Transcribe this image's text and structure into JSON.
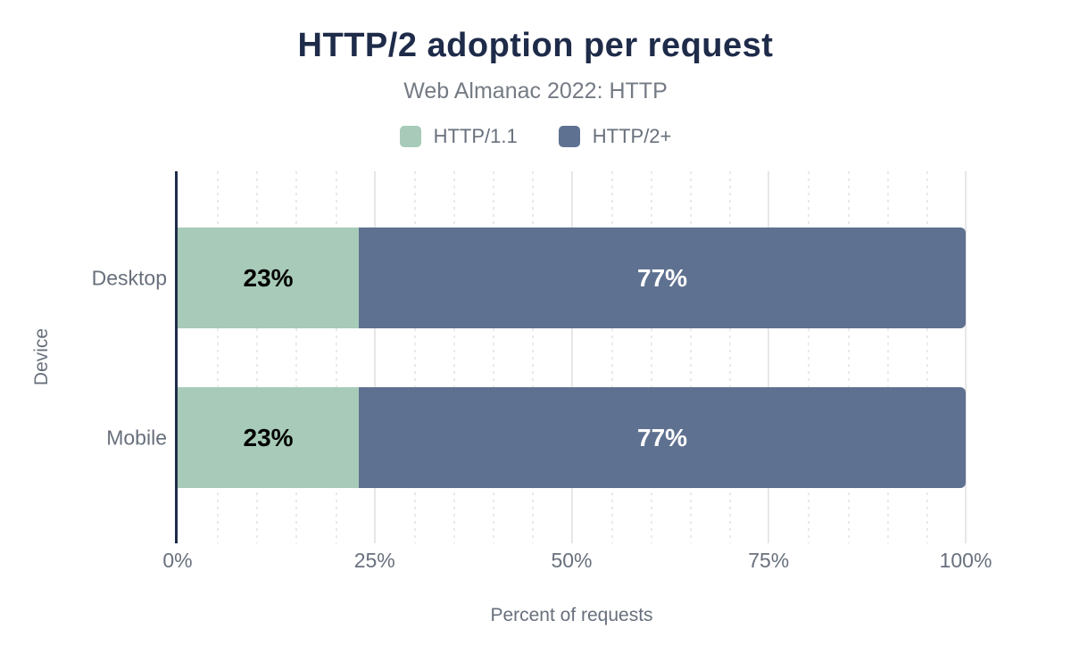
{
  "chart_data": {
    "type": "bar",
    "orientation": "horizontal",
    "stacked": true,
    "title": "HTTP/2 adoption per request",
    "subtitle": "Web Almanac 2022: HTTP",
    "categories": [
      "Desktop",
      "Mobile"
    ],
    "series": [
      {
        "name": "HTTP/1.1",
        "color": "#a7cbb8",
        "label_color": "#000000",
        "values": [
          23,
          23
        ],
        "labels": [
          "23%",
          "23%"
        ]
      },
      {
        "name": "HTTP/2+",
        "color": "#5f7190",
        "label_color": "#ffffff",
        "values": [
          77,
          77
        ],
        "labels": [
          "77%",
          "77%"
        ]
      }
    ],
    "xlabel": "Percent of requests",
    "ylabel": "Device",
    "xlim": [
      0,
      100
    ],
    "xticks": [
      0,
      25,
      50,
      75,
      100
    ],
    "xtick_labels": [
      "0%",
      "25%",
      "50%",
      "75%",
      "100%"
    ],
    "minor_grid_step": 5,
    "grid": true,
    "legend_position": "top"
  },
  "colors": {
    "title": "#1e2b49",
    "axis_line": "#1e2b49",
    "text_gray": "#68707c",
    "subtitle_gray": "#757b84",
    "major_grid": "#e7e7e7",
    "minor_grid": "#e9e9e9",
    "background": "#ffffff"
  }
}
